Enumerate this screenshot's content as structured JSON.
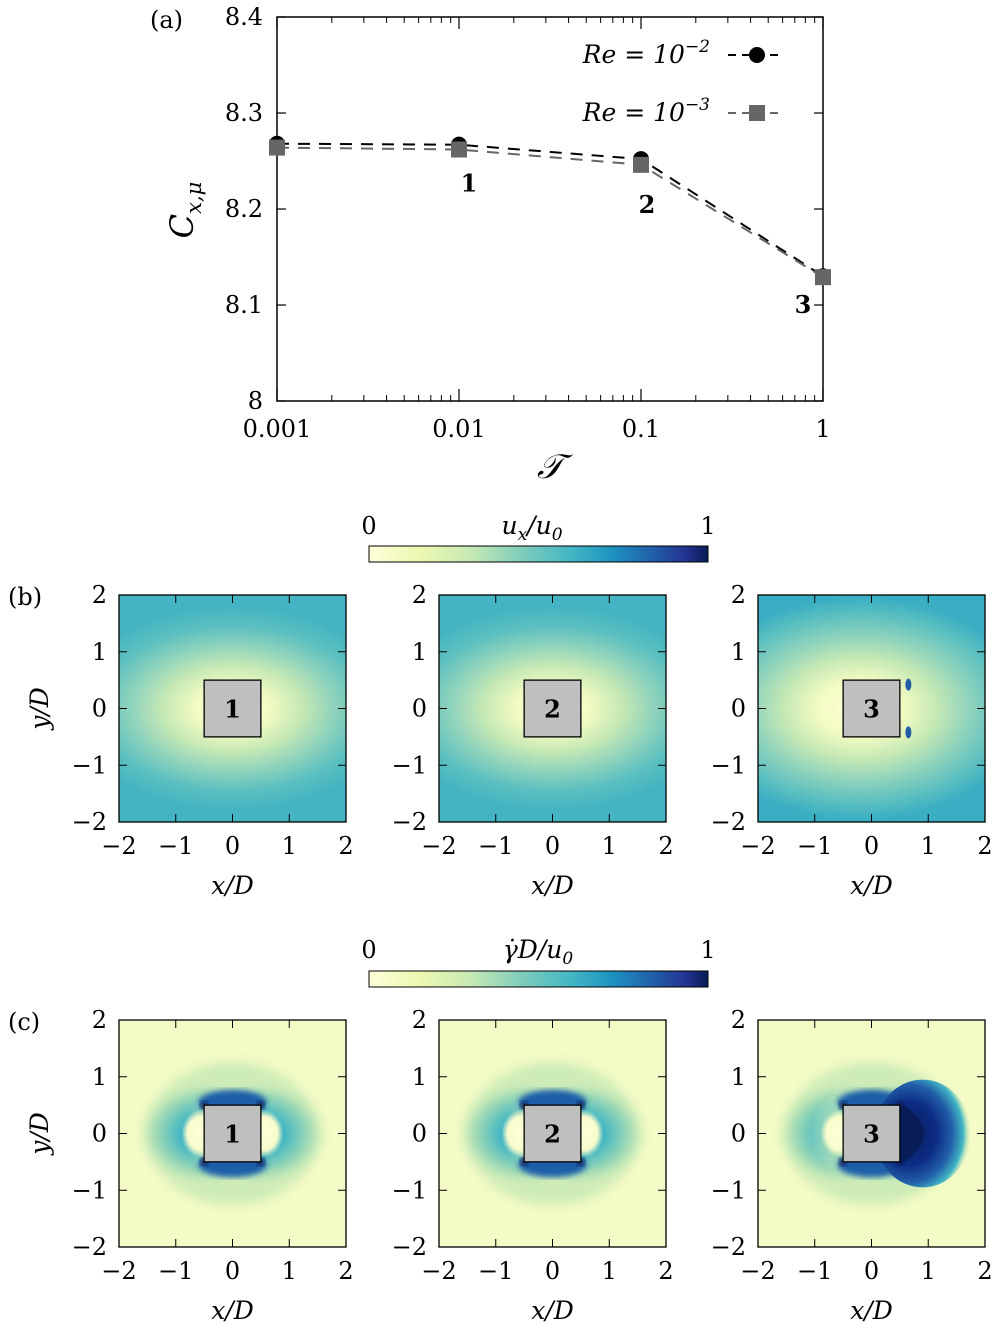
{
  "panel_a": {
    "label": "(a)",
    "xlabel": "𝒯",
    "ylabel_main": "C",
    "ylabel_sub": "x,μ",
    "xticks": [
      "0.001",
      "0.01",
      "0.1",
      "1"
    ],
    "yticks": [
      "8",
      "8.1",
      "8.2",
      "8.3",
      "8.4"
    ],
    "point_labels": [
      "1",
      "2",
      "3"
    ],
    "legend": [
      {
        "label_base": "Re = 10",
        "label_exp": "−2",
        "marker": "circle",
        "color": "#000000"
      },
      {
        "label_base": "Re = 10",
        "label_exp": "−3",
        "marker": "square",
        "color": "#666666"
      }
    ]
  },
  "panel_b": {
    "label": "(b)",
    "colorbar_label": "u_x/u_0",
    "colorbar_min": "0",
    "colorbar_max": "1",
    "xlabel": "x/D",
    "ylabel": "y/D",
    "ticks": [
      "−2",
      "−1",
      "0",
      "1",
      "2"
    ],
    "box_labels": [
      "1",
      "2",
      "3"
    ]
  },
  "panel_c": {
    "label": "(c)",
    "colorbar_label": "γ̇D/u_0",
    "colorbar_min": "0",
    "colorbar_max": "1",
    "xlabel": "x/D",
    "ylabel": "y/D",
    "ticks": [
      "−2",
      "−1",
      "0",
      "1",
      "2"
    ],
    "box_labels": [
      "1",
      "2",
      "3"
    ]
  },
  "colors": {
    "cmap_low": "#ffffd9",
    "cmap_mid": "#41b6c4",
    "cmap_high": "#081d58",
    "box_fill": "#bfbfbf",
    "re3_color": "#666666"
  },
  "chart_data": [
    {
      "type": "line",
      "title": "",
      "xlabel": "𝒯",
      "ylabel": "C_{x,μ}",
      "xscale": "log",
      "xlim": [
        0.001,
        1
      ],
      "ylim": [
        8,
        8.4
      ],
      "grid": false,
      "legend_position": "top-right",
      "x": [
        0.001,
        0.01,
        0.1,
        1
      ],
      "series": [
        {
          "name": "Re = 10^-2",
          "values": [
            8.268,
            8.267,
            8.252,
            8.13
          ]
        },
        {
          "name": "Re = 10^-3",
          "values": [
            8.264,
            8.262,
            8.246,
            8.129
          ]
        }
      ],
      "annotations": [
        {
          "text": "1",
          "x": 0.01
        },
        {
          "text": "2",
          "x": 0.1
        },
        {
          "text": "3",
          "x": 1
        }
      ]
    },
    {
      "type": "heatmap",
      "field": "u_x/u_0",
      "xlabel": "x/D",
      "ylabel": "y/D",
      "xlim": [
        -2,
        2
      ],
      "ylim": [
        -2,
        2
      ],
      "colorbar_range": [
        0,
        1
      ],
      "cases": [
        "1",
        "2",
        "3"
      ]
    },
    {
      "type": "heatmap",
      "field": "γ̇D/u_0",
      "xlabel": "x/D",
      "ylabel": "y/D",
      "xlim": [
        -2,
        2
      ],
      "ylim": [
        -2,
        2
      ],
      "colorbar_range": [
        0,
        1
      ],
      "cases": [
        "1",
        "2",
        "3"
      ]
    }
  ]
}
